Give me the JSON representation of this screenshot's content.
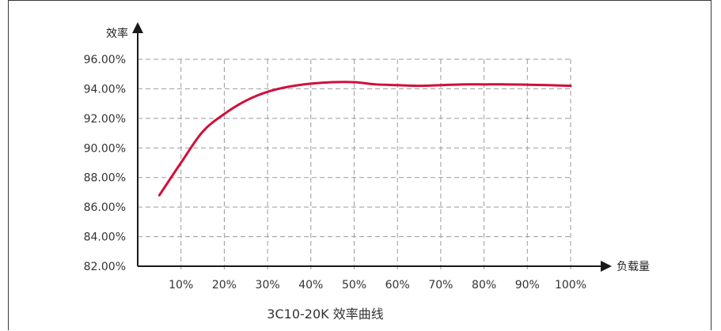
{
  "chart_data": {
    "type": "line",
    "title": "3C10-20K 效率曲线",
    "xlabel": "负载量",
    "ylabel": "效率",
    "x_tick_labels": [
      "10%",
      "20%",
      "30%",
      "40%",
      "50%",
      "60%",
      "70%",
      "80%",
      "90%",
      "100%"
    ],
    "y_tick_labels": [
      "82.00%",
      "84.00%",
      "86.00%",
      "88.00%",
      "90.00%",
      "92.00%",
      "94.00%",
      "96.00%"
    ],
    "xlim": [
      0,
      100
    ],
    "ylim": [
      82,
      96
    ],
    "grid": true,
    "series": [
      {
        "color": "#d0103a",
        "x": [
          5,
          10,
          15,
          20,
          25,
          30,
          35,
          40,
          45,
          50,
          55,
          60,
          65,
          70,
          75,
          80,
          85,
          90,
          95,
          100
        ],
        "y": [
          86.8,
          89.0,
          91.1,
          92.3,
          93.2,
          93.8,
          94.15,
          94.35,
          94.45,
          94.45,
          94.3,
          94.25,
          94.2,
          94.25,
          94.3,
          94.3,
          94.3,
          94.28,
          94.25,
          94.2
        ]
      }
    ]
  }
}
